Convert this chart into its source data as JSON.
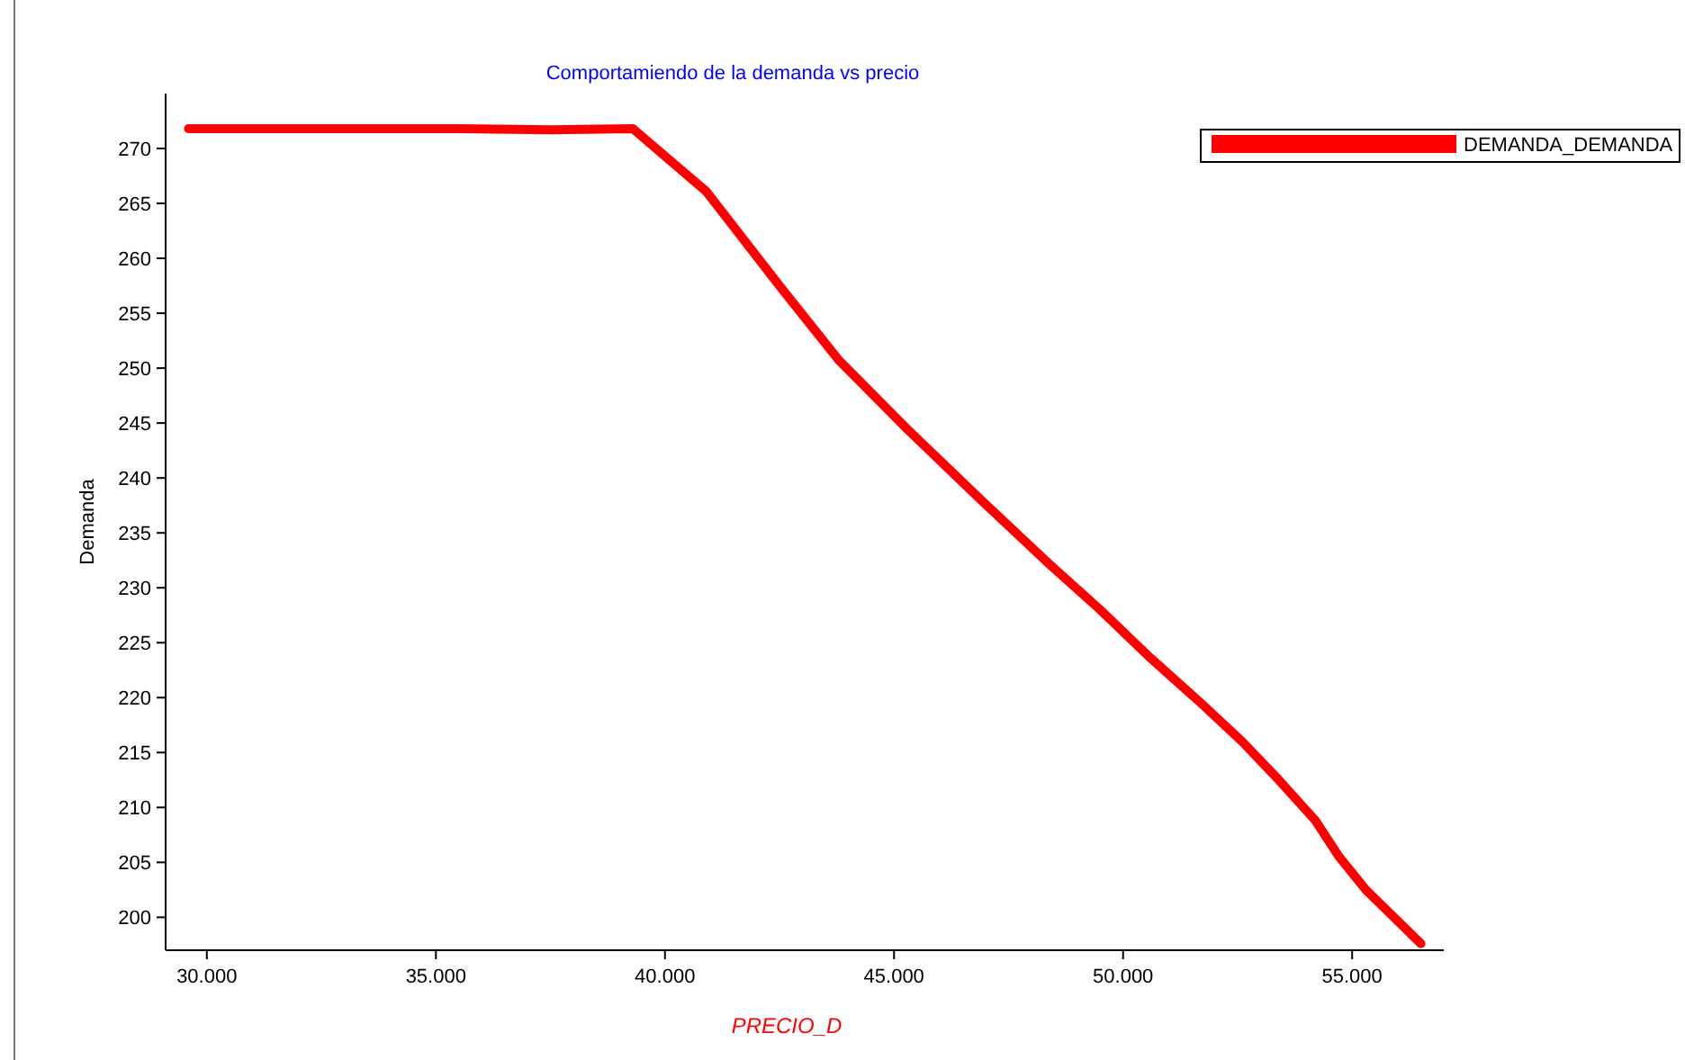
{
  "chart_data": {
    "type": "line",
    "title": "Comportamiendo de la demanda vs precio",
    "xlabel": "PRECIO_D",
    "ylabel": "Demanda",
    "xlim": [
      29100,
      57000
    ],
    "ylim": [
      197,
      275
    ],
    "xticks": [
      {
        "value": 30000,
        "label": "30.000"
      },
      {
        "value": 35000,
        "label": "35.000"
      },
      {
        "value": 40000,
        "label": "40.000"
      },
      {
        "value": 45000,
        "label": "45.000"
      },
      {
        "value": 50000,
        "label": "50.000"
      },
      {
        "value": 55000,
        "label": "55.000"
      }
    ],
    "yticks": [
      200,
      205,
      210,
      215,
      220,
      225,
      230,
      235,
      240,
      245,
      250,
      255,
      260,
      265,
      270
    ],
    "grid": false,
    "legend": "top right",
    "marker": "none",
    "line_style": "solid",
    "series": [
      {
        "name": "DEMANDA_DEMANDA",
        "color": "#ff0000",
        "x": [
          29600,
          31500,
          33500,
          35500,
          37500,
          39300,
          40900,
          42500,
          43800,
          45300,
          46900,
          48300,
          49500,
          50600,
          51700,
          52600,
          53400,
          54200,
          54700,
          55300,
          56500
        ],
        "values": [
          271.8,
          271.8,
          271.8,
          271.8,
          271.7,
          271.8,
          266.1,
          257.5,
          250.7,
          244.4,
          238,
          232.5,
          228,
          223.6,
          219.5,
          216,
          212.5,
          208.8,
          205.6,
          202.5,
          197.6
        ]
      }
    ]
  }
}
